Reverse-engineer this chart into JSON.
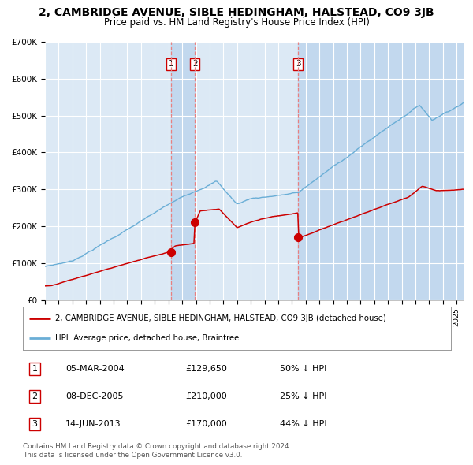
{
  "title": "2, CAMBRIDGE AVENUE, SIBLE HEDINGHAM, HALSTEAD, CO9 3JB",
  "subtitle": "Price paid vs. HM Land Registry's House Price Index (HPI)",
  "red_line_label": "2, CAMBRIDGE AVENUE, SIBLE HEDINGHAM, HALSTEAD, CO9 3JB (detached house)",
  "blue_line_label": "HPI: Average price, detached house, Braintree",
  "transactions": [
    {
      "num": 1,
      "date": "05-MAR-2004",
      "price": 129650,
      "price_str": "£129,650",
      "pct_str": "50% ↓ HPI",
      "x_year": 2004.17
    },
    {
      "num": 2,
      "date": "08-DEC-2005",
      "price": 210000,
      "price_str": "£210,000",
      "pct_str": "25% ↓ HPI",
      "x_year": 2005.93
    },
    {
      "num": 3,
      "date": "14-JUN-2013",
      "price": 170000,
      "price_str": "£170,000",
      "pct_str": "44% ↓ HPI",
      "x_year": 2013.44
    }
  ],
  "footer_line1": "Contains HM Land Registry data © Crown copyright and database right 2024.",
  "footer_line2": "This data is licensed under the Open Government Licence v3.0.",
  "ylim": [
    0,
    700000
  ],
  "xlim_start": 1995.0,
  "xlim_end": 2025.5,
  "plot_bg": "#dce9f5",
  "shade_color": "#c2d8ee",
  "grid_color": "#ffffff",
  "blue_color": "#6aaed6",
  "red_color": "#cc0000",
  "vline_color": "#e88080"
}
